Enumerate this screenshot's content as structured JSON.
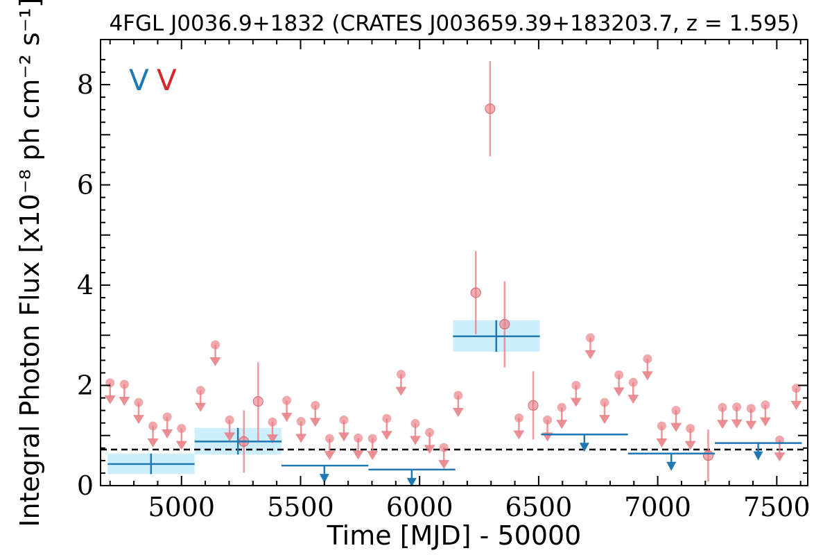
{
  "chart_data": {
    "type": "scatter",
    "title": "4FGL J0036.9+1832 (CRATES J003659.39+183203.7, z = 1.595)",
    "xlabel": "Time [MJD] - 50000",
    "ylabel": "Integral Photon Flux [x10⁻⁸ ph cm⁻² s⁻¹]",
    "xlim": [
      4660,
      7630
    ],
    "ylim": [
      0,
      8.9
    ],
    "xticks": [
      5000,
      5500,
      6000,
      6500,
      7000,
      7500
    ],
    "yticks": [
      0,
      2,
      4,
      6,
      8
    ],
    "legend_marks": [
      {
        "text": "V",
        "color": "#1f77b4"
      },
      {
        "text": "V",
        "color": "#d62728"
      }
    ],
    "baseline": 0.72,
    "colors": {
      "short_bin": "#e87a80",
      "long_bin": "#1f77b4",
      "long_bin_band": "#cdeefd"
    },
    "short_bin_detections": [
      {
        "x": 5262,
        "y": 0.88,
        "yerr": 0.62
      },
      {
        "x": 5322,
        "y": 1.68,
        "yerr": 0.78
      },
      {
        "x": 6236,
        "y": 3.85,
        "yerr": 0.83
      },
      {
        "x": 6296,
        "y": 7.52,
        "yerr": 0.95
      },
      {
        "x": 6357,
        "y": 3.22,
        "yerr": 0.86
      },
      {
        "x": 6477,
        "y": 1.6,
        "yerr": 0.68
      },
      {
        "x": 7212,
        "y": 0.6,
        "yerr": 0.52
      }
    ],
    "short_bin_upper_limits": [
      {
        "x": 4700,
        "y": 2.05
      },
      {
        "x": 4760,
        "y": 2.02
      },
      {
        "x": 4820,
        "y": 1.66
      },
      {
        "x": 4880,
        "y": 1.19
      },
      {
        "x": 4940,
        "y": 1.37
      },
      {
        "x": 5000,
        "y": 1.14
      },
      {
        "x": 5080,
        "y": 1.9
      },
      {
        "x": 5142,
        "y": 2.81
      },
      {
        "x": 5202,
        "y": 1.31
      },
      {
        "x": 5382,
        "y": 1.27
      },
      {
        "x": 5442,
        "y": 1.7
      },
      {
        "x": 5502,
        "y": 1.28
      },
      {
        "x": 5562,
        "y": 1.6
      },
      {
        "x": 5622,
        "y": 0.94
      },
      {
        "x": 5682,
        "y": 1.31
      },
      {
        "x": 5742,
        "y": 0.95
      },
      {
        "x": 5802,
        "y": 0.94
      },
      {
        "x": 5862,
        "y": 1.34
      },
      {
        "x": 5922,
        "y": 2.22
      },
      {
        "x": 5982,
        "y": 1.24
      },
      {
        "x": 6042,
        "y": 1.06
      },
      {
        "x": 6102,
        "y": 0.76
      },
      {
        "x": 6162,
        "y": 1.8
      },
      {
        "x": 6417,
        "y": 1.35
      },
      {
        "x": 6537,
        "y": 1.31
      },
      {
        "x": 6597,
        "y": 1.56
      },
      {
        "x": 6657,
        "y": 2.0
      },
      {
        "x": 6717,
        "y": 2.95
      },
      {
        "x": 6777,
        "y": 1.66
      },
      {
        "x": 6837,
        "y": 2.21
      },
      {
        "x": 6897,
        "y": 2.06
      },
      {
        "x": 6957,
        "y": 2.53
      },
      {
        "x": 7017,
        "y": 1.19
      },
      {
        "x": 7077,
        "y": 1.5
      },
      {
        "x": 7137,
        "y": 1.14
      },
      {
        "x": 7272,
        "y": 1.56
      },
      {
        "x": 7332,
        "y": 1.57
      },
      {
        "x": 7392,
        "y": 1.54
      },
      {
        "x": 7452,
        "y": 1.61
      },
      {
        "x": 7512,
        "y": 0.91
      },
      {
        "x": 7582,
        "y": 1.94
      }
    ],
    "long_bin_detections": [
      {
        "x0": 4690,
        "x1": 5055,
        "xc": 4872,
        "y": 0.43,
        "ylo": 0.23,
        "yhi": 0.64
      },
      {
        "x0": 5055,
        "x1": 5420,
        "xc": 5237,
        "y": 0.88,
        "ylo": 0.62,
        "yhi": 1.15
      },
      {
        "x0": 6140,
        "x1": 6505,
        "xc": 6322,
        "y": 2.98,
        "ylo": 2.67,
        "yhi": 3.3
      }
    ],
    "long_bin_upper_limits": [
      {
        "x0": 5420,
        "x1": 5785,
        "xc": 5600,
        "y": 0.4
      },
      {
        "x0": 5785,
        "x1": 6150,
        "xc": 5967,
        "y": 0.32
      },
      {
        "x0": 6510,
        "x1": 6875,
        "xc": 6692,
        "y": 1.02
      },
      {
        "x0": 6875,
        "x1": 7240,
        "xc": 7057,
        "y": 0.64
      },
      {
        "x0": 7240,
        "x1": 7605,
        "xc": 7422,
        "y": 0.85
      }
    ]
  }
}
